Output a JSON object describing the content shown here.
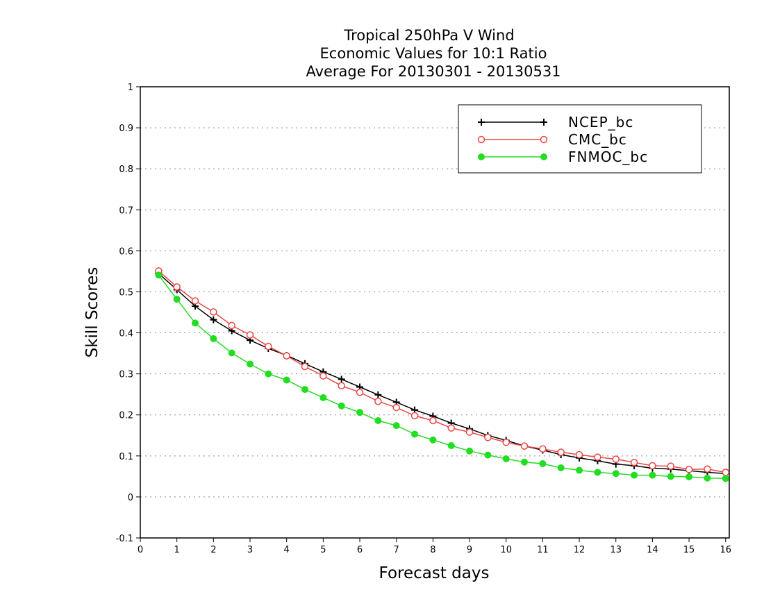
{
  "chart_data": {
    "type": "line",
    "title_lines": [
      "Tropical 250hPa V Wind",
      "Economic Values for 10:1 Ratio",
      "Average For 20130301 - 20130531"
    ],
    "xlabel": "Forecast days",
    "ylabel": "Skill Scores",
    "xlim": [
      0,
      16.1
    ],
    "ylim": [
      -0.1,
      1
    ],
    "x_ticks": [
      "0",
      "1",
      "2",
      "3",
      "4",
      "5",
      "6",
      "7",
      "8",
      "9",
      "10",
      "11",
      "12",
      "13",
      "14",
      "15",
      "16"
    ],
    "y_ticks": [
      "-0.1",
      "0",
      "0.1",
      "0.2",
      "0.3",
      "0.4",
      "0.5",
      "0.6",
      "0.7",
      "0.8",
      "0.9",
      "1"
    ],
    "grid": "horizontal dotted",
    "legend_position": "top-right",
    "x": [
      0.5,
      1,
      1.5,
      2,
      2.5,
      3,
      3.5,
      4,
      4.5,
      5,
      5.5,
      6,
      6.5,
      7,
      7.5,
      8,
      8.5,
      9,
      9.5,
      10,
      10.5,
      11,
      11.5,
      12,
      12.5,
      13,
      13.5,
      14,
      14.5,
      15,
      15.5,
      16
    ],
    "series": [
      {
        "name": "NCEP_bc",
        "color": "#000000",
        "marker": "plus",
        "values": [
          0.545,
          0.505,
          0.465,
          0.432,
          0.405,
          0.382,
          0.362,
          0.345,
          0.325,
          0.305,
          0.287,
          0.268,
          0.249,
          0.231,
          0.212,
          0.197,
          0.18,
          0.166,
          0.15,
          0.138,
          0.124,
          0.114,
          0.103,
          0.095,
          0.088,
          0.08,
          0.076,
          0.07,
          0.068,
          0.064,
          0.06,
          0.057
        ]
      },
      {
        "name": "CMC_bc",
        "color": "#ee4444",
        "marker": "open-circle",
        "values": [
          0.551,
          0.512,
          0.478,
          0.451,
          0.418,
          0.395,
          0.367,
          0.344,
          0.318,
          0.295,
          0.271,
          0.255,
          0.233,
          0.218,
          0.198,
          0.186,
          0.168,
          0.158,
          0.145,
          0.133,
          0.124,
          0.117,
          0.109,
          0.103,
          0.097,
          0.092,
          0.084,
          0.076,
          0.075,
          0.067,
          0.068,
          0.06
        ]
      },
      {
        "name": "FNMOC_bc",
        "color": "#22dd22",
        "marker": "filled-circle",
        "values": [
          0.541,
          0.482,
          0.424,
          0.386,
          0.351,
          0.324,
          0.3,
          0.285,
          0.262,
          0.242,
          0.222,
          0.206,
          0.186,
          0.174,
          0.153,
          0.139,
          0.125,
          0.112,
          0.102,
          0.093,
          0.085,
          0.081,
          0.071,
          0.065,
          0.06,
          0.057,
          0.053,
          0.053,
          0.05,
          0.049,
          0.046,
          0.045
        ]
      }
    ]
  }
}
